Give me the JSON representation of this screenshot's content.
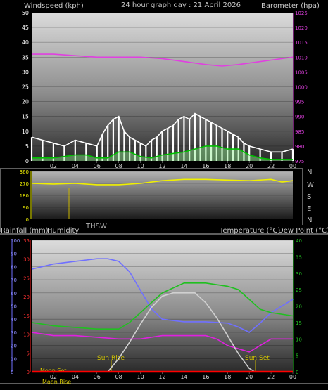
{
  "colors": {
    "background": "#000000",
    "wind_avg": "#00c000",
    "wind_gust": "#ffffff",
    "barometer": "#e040e0",
    "direction": "#f0f000",
    "rain": "#ff0000",
    "humidity": "#7070ff",
    "temperature": "#20c020",
    "dew_point": "#e020e0",
    "solar": "#d0d0d0",
    "marker": "#c8b400"
  },
  "labels": {
    "windspeed": "Windspeed (kph)",
    "title": "24 hour graph day : 21 April 2026",
    "barometer": "Barometer (hpa)",
    "thsw": "THSW",
    "rainfall": "Rainfall (mm)",
    "humidity": "Humidity",
    "temperature": "Temperature (°C)",
    "dew_point": "Dew Point (°C)",
    "moon_set": "Moon Set",
    "moon_rise": "Moon Rise",
    "sun_rise": "Sun Rise",
    "sun_set": "Sun Set"
  },
  "compass": [
    "N",
    "W",
    "S",
    "E",
    "N"
  ],
  "chart_data": [
    {
      "type": "line",
      "x_ticks": [
        "02",
        "04",
        "06",
        "08",
        "10",
        "12",
        "14",
        "16",
        "18",
        "20",
        "22",
        "00"
      ],
      "y_left": {
        "ticks": [
          0,
          5,
          10,
          15,
          20,
          25,
          30,
          35,
          40,
          45,
          50
        ],
        "ylim": [
          0,
          50
        ]
      },
      "y_right": {
        "ticks": [
          975,
          980,
          985,
          990,
          995,
          1000,
          1005,
          1010,
          1015,
          1020,
          1025
        ],
        "ylim": [
          975,
          1025
        ]
      },
      "series": [
        {
          "key": "barometer",
          "axis": "right",
          "x": [
            0,
            2,
            4,
            6,
            8,
            10,
            12,
            14,
            16,
            17.5,
            19,
            20,
            22,
            24
          ],
          "values": [
            1011,
            1011,
            1010.5,
            1010,
            1010,
            1010,
            1009.5,
            1008.5,
            1007.5,
            1007,
            1007.5,
            1008,
            1009,
            1010
          ]
        },
        {
          "key": "wind_gust",
          "axis": "left",
          "x": [
            0,
            1,
            2,
            3,
            4,
            5,
            6,
            6.5,
            7,
            7.5,
            8,
            8.5,
            9,
            9.5,
            10,
            10.5,
            11,
            11.5,
            12,
            12.5,
            13,
            13.5,
            14,
            14.5,
            15,
            15.5,
            16,
            16.5,
            17,
            17.5,
            18,
            18.5,
            19,
            19.5,
            20,
            21,
            22,
            23,
            24
          ],
          "values": [
            8,
            7,
            6,
            5,
            7,
            6,
            5,
            9,
            12,
            14,
            15,
            10,
            8,
            7,
            6,
            5,
            7,
            8,
            10,
            11,
            12,
            14,
            15,
            14,
            16,
            15,
            14,
            13,
            12,
            11,
            10,
            9,
            8,
            6,
            5,
            4,
            3,
            3,
            4
          ]
        },
        {
          "key": "wind_avg",
          "axis": "left",
          "x": [
            0,
            1,
            2,
            3,
            4,
            5,
            6,
            7,
            8,
            9,
            10,
            11,
            12,
            13,
            14,
            15,
            16,
            17,
            18,
            19,
            20,
            21,
            22,
            23,
            24
          ],
          "values": [
            1,
            1,
            1,
            1.5,
            2,
            2,
            1,
            1,
            3,
            3,
            1.5,
            1,
            2,
            2.5,
            3,
            4,
            5,
            5,
            4,
            4,
            2,
            1,
            0.5,
            0.5,
            0.5
          ]
        }
      ]
    },
    {
      "type": "line",
      "x_ticks": [],
      "y_left": {
        "ticks": [
          0,
          90,
          180,
          270,
          360
        ],
        "ylim": [
          0,
          360
        ]
      },
      "series": [
        {
          "key": "direction",
          "axis": "left",
          "x": [
            0,
            2,
            4,
            6,
            8,
            10,
            12,
            14,
            16,
            18,
            20,
            22,
            23,
            24
          ],
          "values": [
            270,
            265,
            270,
            260,
            260,
            270,
            290,
            300,
            300,
            295,
            290,
            300,
            280,
            290
          ]
        }
      ]
    },
    {
      "type": "line",
      "x_ticks": [
        "02",
        "04",
        "06",
        "08",
        "10",
        "12",
        "14",
        "16",
        "18",
        "20",
        "22",
        "00"
      ],
      "y_left": {
        "ticks": [
          0,
          10,
          20,
          30,
          40,
          50,
          60,
          70,
          80,
          90,
          100
        ],
        "ylim": [
          0,
          100
        ]
      },
      "y_left2": {
        "ticks": [
          0,
          5,
          10,
          15,
          20,
          25,
          30,
          35
        ],
        "ylim": [
          0,
          35
        ]
      },
      "y_right": {
        "ticks": [
          0,
          5,
          10,
          15,
          20,
          25,
          30,
          35,
          40
        ],
        "ylim": [
          0,
          40
        ]
      },
      "series": [
        {
          "key": "humidity",
          "axis": "left",
          "x": [
            0,
            2,
            4,
            6,
            7,
            8,
            9,
            10,
            11,
            12,
            14,
            16,
            18,
            19,
            20,
            21,
            22,
            23,
            24
          ],
          "values": [
            78,
            82,
            84,
            86,
            86,
            84,
            76,
            62,
            48,
            40,
            38,
            38,
            37,
            34,
            30,
            37,
            45,
            50,
            55
          ]
        },
        {
          "key": "temperature",
          "axis": "right",
          "x": [
            0,
            2,
            4,
            6,
            8,
            9,
            10,
            11,
            12,
            14,
            16,
            18,
            19,
            20,
            21,
            22,
            24
          ],
          "values": [
            15,
            14,
            13.5,
            13,
            13,
            15,
            18,
            21,
            24,
            27,
            27,
            26,
            25,
            22,
            19,
            18,
            17
          ]
        },
        {
          "key": "dew_point",
          "axis": "right",
          "x": [
            0,
            2,
            4,
            6,
            8,
            10,
            12,
            14,
            16,
            17,
            18,
            19,
            20,
            21,
            22,
            24
          ],
          "values": [
            12,
            11,
            11,
            10.5,
            10,
            10,
            11,
            11,
            11,
            10,
            8,
            7,
            6,
            8,
            10,
            10
          ]
        },
        {
          "key": "solar",
          "axis": "right",
          "x": [
            7,
            8,
            9,
            10,
            11,
            12,
            13,
            14,
            15,
            16,
            17,
            18,
            19,
            20,
            20.5
          ],
          "values": [
            0,
            4,
            9,
            14.5,
            19.5,
            23,
            24,
            24,
            24,
            21,
            16.5,
            11,
            5.5,
            1,
            0
          ]
        },
        {
          "key": "rain",
          "axis": "left",
          "x": [
            0,
            24
          ],
          "values": [
            0,
            0
          ]
        }
      ]
    }
  ]
}
